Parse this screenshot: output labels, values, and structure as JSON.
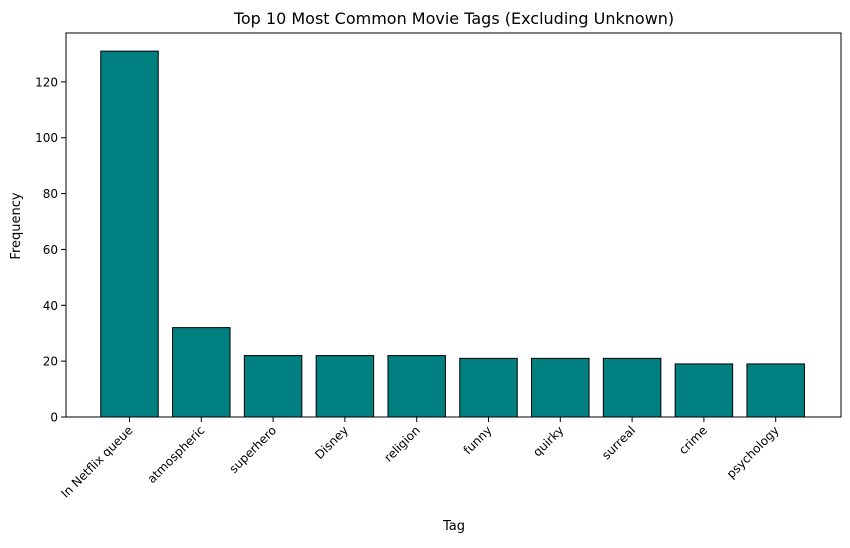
{
  "chart_data": {
    "type": "bar",
    "title": "Top 10 Most Common Movie Tags (Excluding Unknown)",
    "xlabel": "Tag",
    "ylabel": "Frequency",
    "categories": [
      "In Netflix queue",
      "atmospheric",
      "superhero",
      "Disney",
      "religion",
      "funny",
      "quirky",
      "surreal",
      "crime",
      "psychology"
    ],
    "values": [
      131,
      32,
      22,
      22,
      22,
      21,
      21,
      21,
      19,
      19
    ],
    "ylim": [
      0,
      137.5
    ],
    "yticks": [
      0,
      20,
      40,
      60,
      80,
      100,
      120
    ],
    "grid": false,
    "legend": "none",
    "bar_color": "#008080",
    "edge_color": "#000000"
  }
}
